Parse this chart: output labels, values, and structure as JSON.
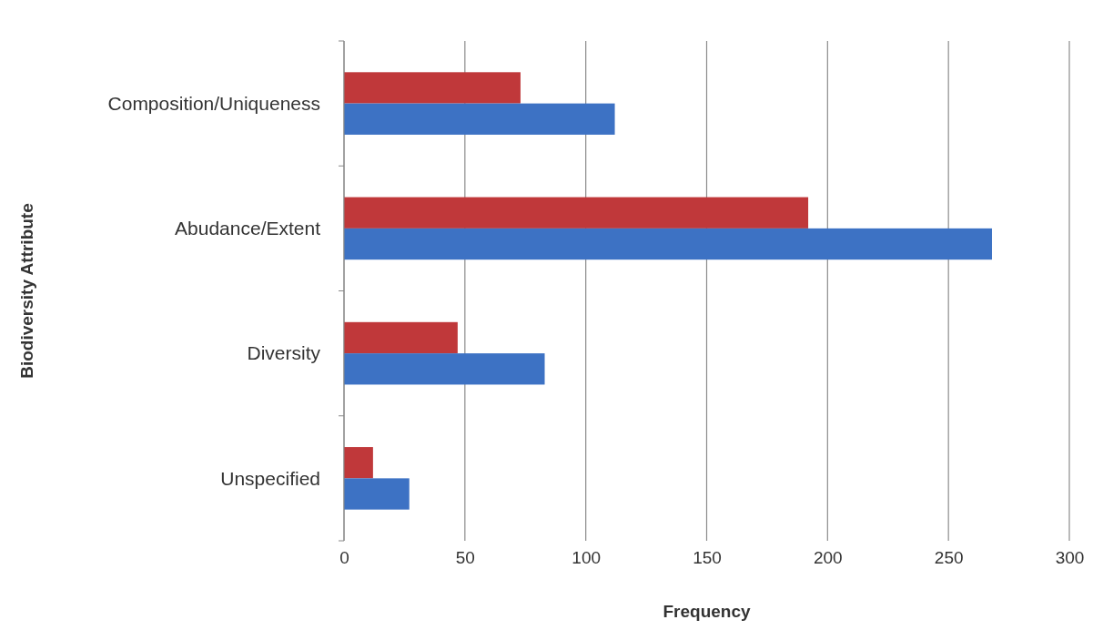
{
  "chart_data": {
    "type": "bar",
    "orientation": "horizontal",
    "xlabel": "Frequency",
    "ylabel": "Biodiversity Attribute",
    "categories": [
      "Composition/Uniqueness",
      "Abudance/Extent",
      "Diversity",
      "Unspecified"
    ],
    "series": [
      {
        "color": "#c0383a",
        "values": [
          73,
          192,
          47,
          12
        ]
      },
      {
        "color": "#3d72c4",
        "values": [
          112,
          268,
          83,
          27
        ]
      }
    ],
    "xlim": [
      0,
      300
    ],
    "xticks": [
      0,
      50,
      100,
      150,
      200,
      250,
      300
    ],
    "grid": "x"
  }
}
